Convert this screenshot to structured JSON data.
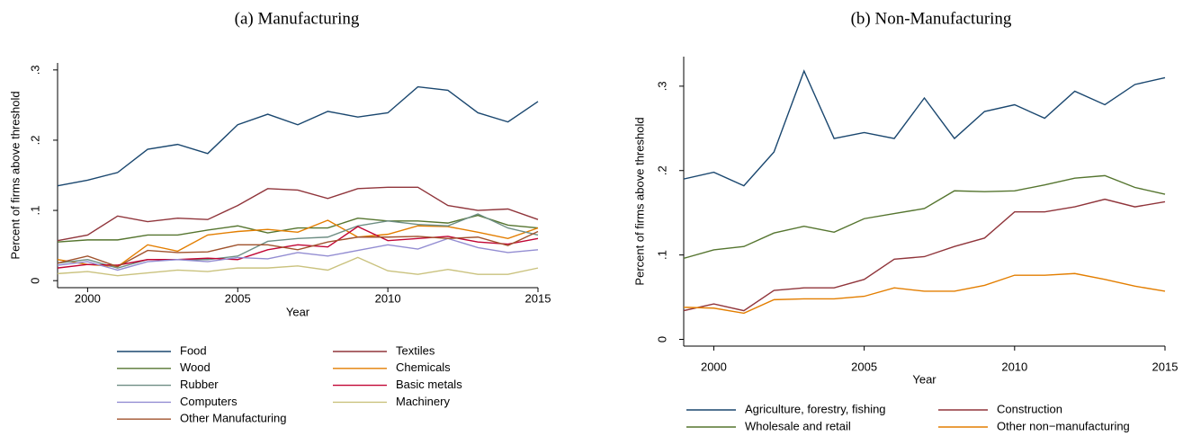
{
  "chart_data": [
    {
      "type": "line",
      "title": "(a) Manufacturing",
      "x_label": "Year",
      "y_label": "Percent of firms above threshold",
      "x": [
        1999,
        2000,
        2001,
        2002,
        2003,
        2004,
        2005,
        2006,
        2007,
        2008,
        2009,
        2010,
        2011,
        2012,
        2013,
        2014,
        2015
      ],
      "xlim": [
        1999,
        2015
      ],
      "xticks": [
        2000,
        2005,
        2010,
        2015
      ],
      "ylim": [
        -0.01,
        0.31
      ],
      "yticks": [
        0,
        {
          "value": 0.1,
          "label": ".1"
        },
        {
          "value": 0.2,
          "label": ".2"
        },
        {
          "value": 0.3,
          "label": ".3"
        }
      ],
      "series": [
        {
          "name": "Food",
          "color": "#1a476f",
          "values": [
            0.135,
            0.143,
            0.154,
            0.187,
            0.194,
            0.181,
            0.222,
            0.237,
            0.222,
            0.241,
            0.233,
            0.239,
            0.276,
            0.271,
            0.239,
            0.226,
            0.255
          ]
        },
        {
          "name": "Textiles",
          "color": "#90353b",
          "values": [
            0.057,
            0.065,
            0.092,
            0.084,
            0.089,
            0.087,
            0.107,
            0.131,
            0.129,
            0.117,
            0.131,
            0.133,
            0.133,
            0.107,
            0.1,
            0.102,
            0.087
          ]
        },
        {
          "name": "Wood",
          "color": "#55752f",
          "values": [
            0.055,
            0.058,
            0.058,
            0.065,
            0.065,
            0.072,
            0.078,
            0.068,
            0.075,
            0.075,
            0.089,
            0.085,
            0.085,
            0.082,
            0.093,
            0.079,
            0.075
          ]
        },
        {
          "name": "Chemicals",
          "color": "#e37e00",
          "values": [
            0.03,
            0.023,
            0.02,
            0.051,
            0.042,
            0.065,
            0.07,
            0.073,
            0.069,
            0.086,
            0.062,
            0.066,
            0.078,
            0.077,
            0.069,
            0.06,
            0.075
          ]
        },
        {
          "name": "Rubber",
          "color": "#6e8e84",
          "values": [
            0.025,
            0.03,
            0.018,
            0.03,
            0.03,
            0.03,
            0.035,
            0.056,
            0.06,
            0.062,
            0.078,
            0.085,
            0.08,
            0.078,
            0.095,
            0.075,
            0.065
          ]
        },
        {
          "name": "Basic metals",
          "color": "#c10534",
          "values": [
            0.018,
            0.023,
            0.022,
            0.03,
            0.03,
            0.032,
            0.03,
            0.044,
            0.051,
            0.048,
            0.077,
            0.057,
            0.06,
            0.063,
            0.055,
            0.052,
            0.06
          ]
        },
        {
          "name": "Computers",
          "color": "#938dd2",
          "values": [
            0.022,
            0.027,
            0.015,
            0.027,
            0.03,
            0.027,
            0.033,
            0.031,
            0.04,
            0.035,
            0.043,
            0.051,
            0.045,
            0.06,
            0.047,
            0.04,
            0.044
          ]
        },
        {
          "name": "Machinery",
          "color": "#cac27e",
          "values": [
            0.01,
            0.013,
            0.007,
            0.011,
            0.015,
            0.013,
            0.018,
            0.018,
            0.021,
            0.015,
            0.033,
            0.014,
            0.009,
            0.016,
            0.009,
            0.009,
            0.018
          ]
        },
        {
          "name": "Other Manufacturing",
          "color": "#a0522d",
          "values": [
            0.025,
            0.035,
            0.02,
            0.043,
            0.04,
            0.041,
            0.051,
            0.051,
            0.044,
            0.055,
            0.062,
            0.062,
            0.063,
            0.06,
            0.062,
            0.05,
            0.07
          ]
        }
      ]
    },
    {
      "type": "line",
      "title": "(b) Non-Manufacturing",
      "x_label": "Year",
      "y_label": "Percent of firms above threshold",
      "x": [
        1999,
        2000,
        2001,
        2002,
        2003,
        2004,
        2005,
        2006,
        2007,
        2008,
        2009,
        2010,
        2011,
        2012,
        2013,
        2014,
        2015
      ],
      "xlim": [
        1999,
        2015
      ],
      "xticks": [
        2000,
        2005,
        2010,
        2015
      ],
      "ylim": [
        -0.008,
        0.335
      ],
      "yticks": [
        0,
        {
          "value": 0.1,
          "label": ".1"
        },
        {
          "value": 0.2,
          "label": ".2"
        },
        {
          "value": 0.3,
          "label": ".3"
        }
      ],
      "series": [
        {
          "name": "Agriculture, forestry, fishing",
          "color": "#1a476f",
          "values": [
            0.19,
            0.198,
            0.182,
            0.222,
            0.318,
            0.238,
            0.245,
            0.238,
            0.286,
            0.238,
            0.27,
            0.278,
            0.262,
            0.294,
            0.278,
            0.302,
            0.31
          ]
        },
        {
          "name": "Construction",
          "color": "#90353b",
          "values": [
            0.034,
            0.042,
            0.034,
            0.058,
            0.061,
            0.061,
            0.071,
            0.095,
            0.098,
            0.11,
            0.12,
            0.151,
            0.151,
            0.157,
            0.166,
            0.157,
            0.163
          ]
        },
        {
          "name": "Wholesale and retail",
          "color": "#55752f",
          "values": [
            0.096,
            0.106,
            0.11,
            0.126,
            0.134,
            0.127,
            0.143,
            0.149,
            0.155,
            0.176,
            0.175,
            0.176,
            0.183,
            0.191,
            0.194,
            0.18,
            0.172
          ]
        },
        {
          "name": "Other non−manufacturing",
          "color": "#e37e00",
          "values": [
            0.038,
            0.037,
            0.031,
            0.047,
            0.048,
            0.048,
            0.051,
            0.061,
            0.057,
            0.057,
            0.064,
            0.076,
            0.076,
            0.078,
            0.071,
            0.063,
            0.057
          ]
        }
      ]
    }
  ]
}
